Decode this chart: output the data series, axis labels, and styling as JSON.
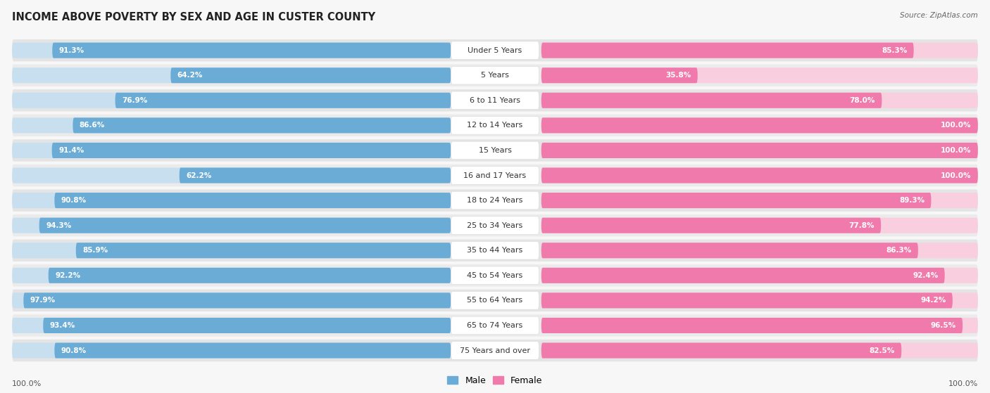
{
  "title": "INCOME ABOVE POVERTY BY SEX AND AGE IN CUSTER COUNTY",
  "source": "Source: ZipAtlas.com",
  "categories": [
    "Under 5 Years",
    "5 Years",
    "6 to 11 Years",
    "12 to 14 Years",
    "15 Years",
    "16 and 17 Years",
    "18 to 24 Years",
    "25 to 34 Years",
    "35 to 44 Years",
    "45 to 54 Years",
    "55 to 64 Years",
    "65 to 74 Years",
    "75 Years and over"
  ],
  "male_values": [
    91.3,
    64.2,
    76.9,
    86.6,
    91.4,
    62.2,
    90.8,
    94.3,
    85.9,
    92.2,
    97.9,
    93.4,
    90.8
  ],
  "female_values": [
    85.3,
    35.8,
    78.0,
    100.0,
    100.0,
    100.0,
    89.3,
    77.8,
    86.3,
    92.4,
    94.2,
    96.5,
    82.5
  ],
  "male_color": "#6aacd5",
  "male_color_light": "#c8dff0",
  "female_color": "#f07aab",
  "female_color_light": "#f9cfe0",
  "row_bg_color": "#e8e8e8",
  "row_bg_alt": "#f0f0f0",
  "background_color": "#f7f7f7",
  "center_label_bg": "#ffffff",
  "title_fontsize": 10.5,
  "label_fontsize": 8,
  "value_fontsize": 7.5,
  "max_value": 100.0,
  "bottom_left_label": "100.0%",
  "bottom_right_label": "100.0%"
}
